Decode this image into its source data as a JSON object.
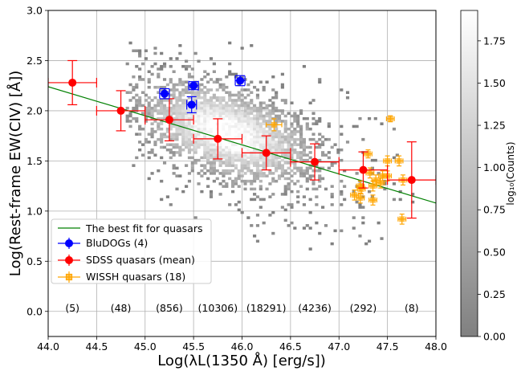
{
  "chart_data": {
    "type": "scatter",
    "xlabel": "Log(λL(1350 Å) [erg/s])",
    "ylabel": "Log(Rest-frame EW(CIV) [Å])",
    "xlim": [
      44.0,
      48.0
    ],
    "ylim": [
      -0.25,
      3.0
    ],
    "x_ticks": [
      "44.0",
      "44.5",
      "45.0",
      "45.5",
      "46.0",
      "46.5",
      "47.0",
      "47.5",
      "48.0"
    ],
    "y_ticks": [
      "0.0",
      "0.5",
      "1.0",
      "1.5",
      "2.0",
      "2.5",
      "3.0"
    ],
    "grid": true,
    "legend_position": "lower-left",
    "best_fit": {
      "name": "The best fit for quasars",
      "color": "#008000",
      "x": [
        44.0,
        48.0
      ],
      "y": [
        2.24,
        1.08
      ]
    },
    "series": [
      {
        "name": "BluDOGs (4)",
        "color": "#0000ff",
        "marker": "circle",
        "x": [
          45.2,
          45.5,
          45.48,
          45.98
        ],
        "y": [
          2.17,
          2.25,
          2.06,
          2.3
        ],
        "xerr": [
          0.05,
          0.05,
          0.05,
          0.05
        ],
        "yerr": [
          0.05,
          0.04,
          0.08,
          0.05
        ]
      },
      {
        "name": "SDSS quasars (mean)",
        "color": "#ff0000",
        "marker": "circle",
        "x": [
          44.25,
          44.75,
          45.25,
          45.75,
          46.25,
          46.75,
          47.25,
          47.75
        ],
        "y": [
          2.28,
          2.0,
          1.91,
          1.72,
          1.58,
          1.49,
          1.41,
          1.31
        ],
        "xerr": [
          0.25,
          0.25,
          0.25,
          0.25,
          0.25,
          0.25,
          0.25,
          0.25
        ],
        "yerr": [
          0.22,
          0.2,
          0.21,
          0.2,
          0.17,
          0.18,
          0.18,
          0.38
        ]
      },
      {
        "name": "WISSH quasars (18)",
        "color": "#ffa500",
        "marker": "square-open",
        "x": [
          46.33,
          47.3,
          47.53,
          47.23,
          47.32,
          47.38,
          47.45,
          47.5,
          47.62,
          47.16,
          47.22,
          47.35,
          47.43,
          47.5,
          47.66,
          47.22,
          47.35,
          47.65
        ],
        "y": [
          1.86,
          1.57,
          1.92,
          1.22,
          1.38,
          1.31,
          1.35,
          1.5,
          1.5,
          1.16,
          1.13,
          1.25,
          1.28,
          1.35,
          1.31,
          1.25,
          1.11,
          0.92
        ],
        "xerr": [
          0.08,
          0.04,
          0.04,
          0.04,
          0.04,
          0.04,
          0.04,
          0.04,
          0.04,
          0.04,
          0.04,
          0.04,
          0.04,
          0.04,
          0.04,
          0.04,
          0.04,
          0.04
        ],
        "yerr": [
          0.06,
          0.04,
          0.03,
          0.05,
          0.05,
          0.05,
          0.05,
          0.05,
          0.05,
          0.05,
          0.05,
          0.05,
          0.05,
          0.05,
          0.05,
          0.05,
          0.05,
          0.05
        ]
      }
    ],
    "bin_counts": {
      "x": [
        44.25,
        44.75,
        45.25,
        45.75,
        46.25,
        46.75,
        47.25,
        47.75
      ],
      "labels": [
        "(5)",
        "(48)",
        "(856)",
        "(10306)",
        "(18291)",
        "(4236)",
        "(292)",
        "(8)"
      ],
      "y": 0.03
    },
    "density": {
      "description_color": "gray",
      "peak": {
        "x": 45.85,
        "y": 1.78
      },
      "colorbar": {
        "label": "log₁₀(Counts)",
        "range": [
          0.0,
          1.93
        ],
        "ticks": [
          "0.00",
          "0.25",
          "0.50",
          "0.75",
          "1.00",
          "1.25",
          "1.50",
          "1.75"
        ]
      }
    }
  }
}
